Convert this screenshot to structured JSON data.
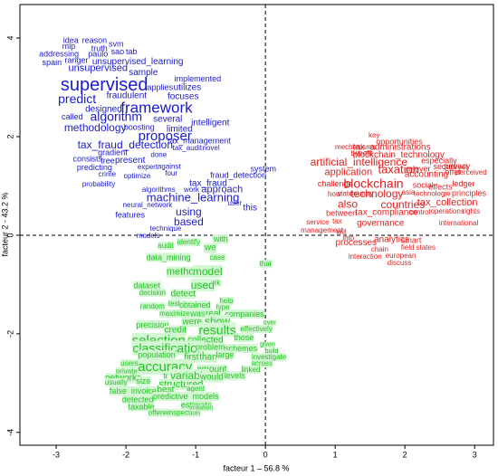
{
  "chart_data": {
    "type": "scatter",
    "x_label": "facteur 1 – 56.8 %",
    "y_label": "facteur 2 - 43.2 %",
    "xlim": [
      -3.52,
      3.27
    ],
    "ylim": [
      -4.26,
      4.68
    ],
    "xticks": [
      -3,
      -2,
      -1,
      0,
      1,
      2,
      3
    ],
    "yticks": [
      -4,
      -2,
      0,
      2,
      4
    ],
    "series": [
      {
        "color": "#1a1acc",
        "labels": [
          "idea",
          "reason",
          "svm",
          "mlp",
          "truth",
          "addressing",
          "paulo",
          "sao",
          "tab",
          "spain",
          "ranger",
          "unsupervised_learning",
          "unsupervised",
          "sample",
          "implemented",
          "supervised",
          "applies",
          "utilizes",
          "predict",
          "fraudulent",
          "focuses",
          "framework",
          "designed",
          "called",
          "algorithm",
          "methodology",
          "boosting",
          "several",
          "intelligent",
          "limited",
          "proposer",
          "tax_fraud_detection",
          "tax_management",
          "tax_audit",
          "novel",
          "gradient",
          "done",
          "consists",
          "tree",
          "present",
          "expert",
          "against",
          "predicting",
          "crime",
          "optimize",
          "four",
          "system",
          "fraud_detection",
          "probability",
          "algorithms",
          "tax_fraud",
          "work",
          "approach",
          "machine_learning",
          "user",
          "this",
          "neural_network",
          "features",
          "using",
          "based",
          "technique",
          "models"
        ],
        "x": [
          -2.79,
          -2.45,
          -2.14,
          -2.82,
          -2.38,
          -2.96,
          -2.4,
          -2.12,
          -1.92,
          -3.06,
          -2.71,
          -1.83,
          -2.4,
          -1.75,
          -0.97,
          -2.31,
          -1.51,
          -1.12,
          -2.7,
          -1.99,
          -1.18,
          -1.56,
          -2.32,
          -2.77,
          -2.14,
          -2.44,
          -1.81,
          -1.4,
          -0.79,
          -1.23,
          -1.44,
          -2.01,
          -0.95,
          -1.12,
          -0.78,
          -2.19,
          -1.53,
          -2.55,
          -2.26,
          -1.94,
          -1.69,
          -1.38,
          -2.45,
          -2.27,
          -1.84,
          -1.35,
          -0.03,
          -0.39,
          -2.39,
          -1.53,
          -0.82,
          -1.06,
          -0.62,
          -1.04,
          -0.44,
          -0.22,
          -1.69,
          -1.94,
          -1.1,
          -1.1,
          -1.43,
          -1.68
        ],
        "y": [
          3.94,
          3.94,
          3.87,
          3.82,
          3.78,
          3.67,
          3.67,
          3.71,
          3.71,
          3.49,
          3.54,
          3.52,
          3.38,
          3.3,
          3.16,
          3.03,
          2.99,
          2.99,
          2.75,
          2.83,
          2.81,
          2.57,
          2.55,
          2.39,
          2.39,
          2.17,
          2.18,
          2.35,
          2.28,
          2.15,
          2.0,
          1.82,
          1.91,
          1.76,
          1.76,
          1.67,
          1.63,
          1.54,
          1.5,
          1.52,
          1.38,
          1.39,
          1.36,
          1.23,
          1.19,
          1.25,
          1.34,
          1.21,
          1.03,
          0.92,
          1.05,
          0.92,
          0.92,
          0.75,
          0.64,
          0.55,
          0.61,
          0.4,
          0.46,
          0.26,
          0.13,
          -0.02
        ]
      },
      {
        "color": "#e01e1e",
        "labels": [
          "key",
          "opportunities",
          "mechanisms",
          "tax_administrations",
          "benefit",
          "blockchain_technology",
          "especially",
          "artificial_intelligence",
          "privacy",
          "taxation",
          "accounting",
          "secure",
          "yet",
          "application",
          "relever",
          "offer",
          "perceived",
          "challenge",
          "blockchain",
          "social",
          "effects",
          "ledger",
          "how",
          "state",
          "country",
          "technology",
          "asia",
          "technologie",
          "principles",
          "also",
          "countries",
          "tax_collection",
          "between",
          "tax_compliance",
          "control",
          "operations",
          "rights",
          "service",
          "tax",
          "governance",
          "international",
          "management",
          "will",
          "into",
          "processes",
          "analytics",
          "smart",
          "chain",
          "field",
          "states",
          "european",
          "interaction",
          "discuss"
        ],
        "x": [
          1.56,
          1.92,
          1.29,
          1.81,
          1.38,
          1.91,
          2.49,
          1.34,
          2.75,
          1.91,
          2.31,
          2.58,
          2.83,
          1.19,
          2.19,
          2.69,
          2.95,
          1.0,
          1.55,
          2.26,
          2.51,
          2.84,
          0.99,
          1.14,
          1.38,
          1.6,
          2.05,
          2.39,
          2.92,
          1.18,
          1.97,
          2.61,
          1.09,
          1.74,
          2.21,
          2.61,
          2.95,
          0.75,
          1.03,
          1.65,
          2.77,
          0.81,
          1.09,
          1.19,
          1.3,
          1.81,
          2.09,
          1.64,
          2.04,
          2.3,
          1.94,
          1.43,
          1.92
        ],
        "y": [
          2.02,
          1.89,
          1.78,
          1.78,
          1.65,
          1.63,
          1.5,
          1.47,
          1.39,
          1.32,
          1.23,
          1.38,
          1.38,
          1.27,
          1.34,
          1.27,
          1.27,
          1.03,
          1.03,
          1.01,
          0.97,
          1.03,
          0.83,
          0.84,
          0.84,
          0.83,
          0.86,
          0.84,
          0.84,
          0.62,
          0.61,
          0.66,
          0.44,
          0.46,
          0.46,
          0.48,
          0.48,
          0.26,
          0.28,
          0.24,
          0.24,
          0.09,
          0.06,
          -0.06,
          -0.15,
          -0.09,
          -0.11,
          -0.29,
          -0.26,
          -0.26,
          -0.42,
          -0.44,
          -0.57
        ]
      },
      {
        "color": "#22c422",
        "labels": [
          "audit",
          "identify",
          "we",
          "with",
          "data_mining",
          "case",
          "method",
          "model",
          "network",
          "dataset",
          "used",
          "decision",
          "detect",
          "that",
          "random",
          "test",
          "obtained",
          "help",
          "type",
          "maximize",
          "was",
          "real",
          "companies",
          "were",
          "show",
          "over",
          "precision",
          "credit",
          "results",
          "effectively",
          "selection",
          "collected",
          "those",
          "classification",
          "problem",
          "schemes",
          "given",
          "build",
          "population",
          "first",
          "than",
          "large",
          "investigate",
          "accuracy",
          "amount",
          "across",
          "users",
          "variable",
          "would",
          "levels",
          "linked",
          "private",
          "networks",
          "tr",
          "usually",
          "size",
          "structured",
          "agent",
          "false_invoices",
          "best",
          "detected",
          "predictive_models",
          "estimate",
          "taxable",
          "offered",
          "inspection",
          "imitation"
        ],
        "x": [
          -1.43,
          -1.1,
          -0.79,
          -0.64,
          -1.39,
          -0.69,
          -1.18,
          -0.83,
          -0.83,
          -1.7,
          -0.9,
          -1.62,
          -1.18,
          0.0,
          -1.62,
          -1.31,
          -1.01,
          -0.56,
          -0.61,
          -1.3,
          -0.97,
          -0.75,
          -0.3,
          -1.05,
          -0.69,
          0.06,
          -1.62,
          -1.29,
          -0.69,
          -0.13,
          -1.53,
          -0.86,
          -0.31,
          -1.39,
          -0.79,
          -0.35,
          0.03,
          0.09,
          -1.56,
          -1.06,
          -0.82,
          -0.58,
          0.05,
          -1.44,
          -0.77,
          -0.05,
          -1.95,
          -1.09,
          -0.77,
          -0.44,
          -0.21,
          -1.99,
          -2.04,
          -1.43,
          -2.14,
          -1.75,
          -1.21,
          -1.0,
          -1.87,
          -1.43,
          -1.83,
          -1.14,
          -0.99,
          -1.78,
          -1.52,
          -1.17,
          -0.92
        ],
        "y": [
          -0.22,
          -0.15,
          -0.26,
          -0.09,
          -0.46,
          -0.46,
          -0.75,
          -0.75,
          -0.97,
          -1.03,
          -1.03,
          -1.17,
          -1.19,
          -0.59,
          -1.45,
          -1.39,
          -1.43,
          -1.34,
          -1.47,
          -1.6,
          -1.6,
          -1.6,
          -1.61,
          -1.76,
          -1.76,
          -1.78,
          -1.83,
          -1.93,
          -1.94,
          -1.91,
          -2.15,
          -2.13,
          -2.09,
          -2.31,
          -2.28,
          -2.31,
          -2.22,
          -2.35,
          -2.44,
          -2.48,
          -2.48,
          -2.44,
          -2.48,
          -2.68,
          -2.72,
          -2.61,
          -2.61,
          -2.86,
          -2.88,
          -2.86,
          -2.73,
          -2.77,
          -2.9,
          -2.86,
          -2.99,
          -2.97,
          -3.03,
          -3.12,
          -3.17,
          -3.14,
          -3.34,
          -3.28,
          -3.45,
          -3.49,
          -3.61,
          -3.61,
          -3.5
        ]
      }
    ]
  }
}
